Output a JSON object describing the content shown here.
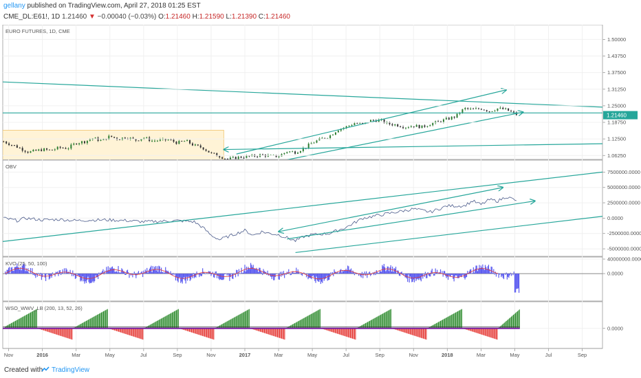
{
  "header": {
    "author": "gellany",
    "published": "published on TradingView.com, April 27, 2018 01:25 EST",
    "symbol": "CME_DL:E61!, 1D",
    "last": "1.21460",
    "change": "−0.00040 (−0.03%)",
    "o_label": "O:",
    "o_value": "1.21460",
    "h_label": "H:",
    "h_value": "1.21590",
    "l_label": "L:",
    "l_value": "1.21390",
    "c_label": "C:",
    "c_value": "1.21460"
  },
  "footer": {
    "created": "Created with",
    "brand": "TradingView"
  },
  "colors": {
    "price_up": "#2e7d32",
    "price_down": "#333333",
    "trend": "#26a69a",
    "obv": "#4a5a8a",
    "kvo_bar": "#5b5bf0",
    "kvo_signal": "#e53935",
    "wave_up": "#2e8b2e",
    "wave_down": "#e53935",
    "highlight": "#fff3d6"
  },
  "chart_data": [
    {
      "type": "line",
      "title": "EURO FUTURES, 1D, CME",
      "y_ticks": [
        "1.50000",
        "1.43750",
        "1.37500",
        "1.31250",
        "1.25000",
        "1.18750",
        "1.12500",
        "1.06250"
      ],
      "y_tick_values": [
        1.5,
        1.4375,
        1.375,
        1.3125,
        1.25,
        1.1875,
        1.125,
        1.0625
      ],
      "ylim": [
        1.058,
        1.54
      ],
      "last_price": "1.21460",
      "x_tick_labels": [
        "Nov",
        "2016",
        "Mar",
        "May",
        "Jul",
        "Sep",
        "Nov",
        "2017",
        "Mar",
        "May",
        "Jul",
        "Sep",
        "Nov",
        "2018",
        "Mar",
        "May",
        "Jul",
        "Sep"
      ],
      "x_tick_months": [
        0,
        2,
        4,
        6,
        8,
        10,
        12,
        14,
        16,
        18,
        20,
        22,
        24,
        26,
        28,
        30,
        32,
        34
      ],
      "x_month_range": [
        -0.35,
        35.2
      ],
      "series": [
        {
          "x_month": [
            -0.3,
            0.5,
            1.2,
            2,
            2.5,
            3,
            3.5,
            4,
            4.5,
            5,
            5.5,
            6,
            6.5,
            7,
            7.5,
            8,
            8.5,
            9,
            9.5,
            10,
            10.5,
            11,
            11.5,
            12,
            12.5,
            13,
            13.5,
            14,
            14.5,
            15,
            15.5,
            16,
            16.5,
            17,
            17.5,
            18,
            18.5,
            19,
            19.5,
            20,
            20.5,
            21,
            21.5,
            22,
            22.5,
            23,
            23.5,
            24,
            24.5,
            25,
            25.5,
            26,
            26.5,
            27,
            27.5,
            28,
            28.5,
            29,
            29.5,
            30,
            30.2
          ],
          "values": [
            1.115,
            1.095,
            1.075,
            1.085,
            1.082,
            1.092,
            1.09,
            1.11,
            1.115,
            1.128,
            1.118,
            1.135,
            1.125,
            1.132,
            1.12,
            1.13,
            1.118,
            1.12,
            1.122,
            1.11,
            1.118,
            1.1,
            1.092,
            1.07,
            1.06,
            1.048,
            1.055,
            1.058,
            1.06,
            1.065,
            1.06,
            1.06,
            1.078,
            1.075,
            1.09,
            1.11,
            1.125,
            1.135,
            1.16,
            1.17,
            1.185,
            1.18,
            1.195,
            1.195,
            1.182,
            1.178,
            1.17,
            1.175,
            1.17,
            1.182,
            1.19,
            1.2,
            1.21,
            1.24,
            1.235,
            1.24,
            1.23,
            1.24,
            1.235,
            1.22,
            1.2146
          ]
        }
      ],
      "highlight_months": [
        -0.35,
        12.75
      ],
      "trend_lines": [
        {
          "m": [
            -0.35,
            35.2
          ],
          "v": [
            1.34,
            1.245
          ]
        },
        {
          "m": [
            -0.35,
            35.2
          ],
          "v": [
            1.223,
            1.223
          ]
        },
        {
          "m": [
            12.75,
            35.2
          ],
          "v": [
            1.085,
            1.107
          ],
          "arrow_start": true
        },
        {
          "m": [
            13.5,
            29.5
          ],
          "v": [
            1.068,
            1.31
          ],
          "arrow_end": true
        },
        {
          "m": [
            16,
            30.5
          ],
          "v": [
            1.04,
            1.226
          ],
          "arrow_end": true
        }
      ]
    },
    {
      "type": "line",
      "title": "OBV",
      "y_ticks": [
        "7500000.0000",
        "5000000.0000",
        "2500000.0000",
        "0.0000",
        "-2500000.0000",
        "-5000000.0000"
      ],
      "y_tick_values": [
        7500000,
        5000000,
        2500000,
        0,
        -2500000,
        -5000000
      ],
      "ylim": [
        -6000000,
        9000000
      ],
      "series": [
        {
          "x_month": [
            -0.3,
            0.5,
            1,
            2,
            3,
            4,
            5,
            6,
            7,
            8,
            9,
            10,
            11,
            11.5,
            12,
            12.5,
            13,
            13.5,
            14,
            14.5,
            15,
            15.5,
            16,
            16.5,
            17,
            17.5,
            18,
            19,
            20,
            21,
            22,
            23,
            24,
            25,
            26,
            27,
            27.5,
            28,
            28.5,
            29,
            29.5,
            30,
            30.2
          ],
          "values": [
            0,
            -400000,
            0,
            -300000,
            -200000,
            -400000,
            -300000,
            -300000,
            -400000,
            -600000,
            -500000,
            -400000,
            -600000,
            -1500000,
            -2800000,
            -3500000,
            -3000000,
            -2500000,
            -2000000,
            -2800000,
            -2200000,
            -2500000,
            -2700000,
            -3200000,
            -3700000,
            -3000000,
            -2700000,
            -2500000,
            -1500000,
            0,
            500000,
            1000000,
            1500000,
            1000000,
            2000000,
            2000000,
            2800000,
            2200000,
            3000000,
            2800000,
            3500000,
            3000000,
            2300000
          ]
        }
      ],
      "trend_lines": [
        {
          "m": [
            -0.35,
            35.2
          ],
          "v": [
            -3800000,
            7500000
          ]
        },
        {
          "m": [
            16,
            29.3
          ],
          "v": [
            -2200000,
            5000000
          ],
          "arrow_start": true,
          "arrow_end": true
        },
        {
          "m": [
            16.5,
            31.2
          ],
          "v": [
            -3400000,
            2800000
          ],
          "arrow_end": true
        },
        {
          "m": [
            17,
            35.2
          ],
          "v": [
            -5600000,
            300000
          ]
        }
      ]
    },
    {
      "type": "bar",
      "title": "KVO (25, 50, 100)",
      "y_ticks": [
        "40000000.0000",
        "0.0000"
      ],
      "y_tick_values": [
        40000000,
        0
      ],
      "ylim": [
        -70000000,
        40000000
      ],
      "bars_months": [
        -0.2,
        30.3
      ],
      "signal_months": [
        -0.2,
        29.0
      ]
    },
    {
      "type": "bar",
      "title": "WSO_WWV_LB (200, 13, 52, 26)",
      "y_ticks": [
        "0.0000"
      ],
      "y_tick_values": [
        0
      ],
      "ylim": [
        -22,
        30
      ],
      "bars_months": [
        -0.2,
        30.3
      ]
    }
  ]
}
